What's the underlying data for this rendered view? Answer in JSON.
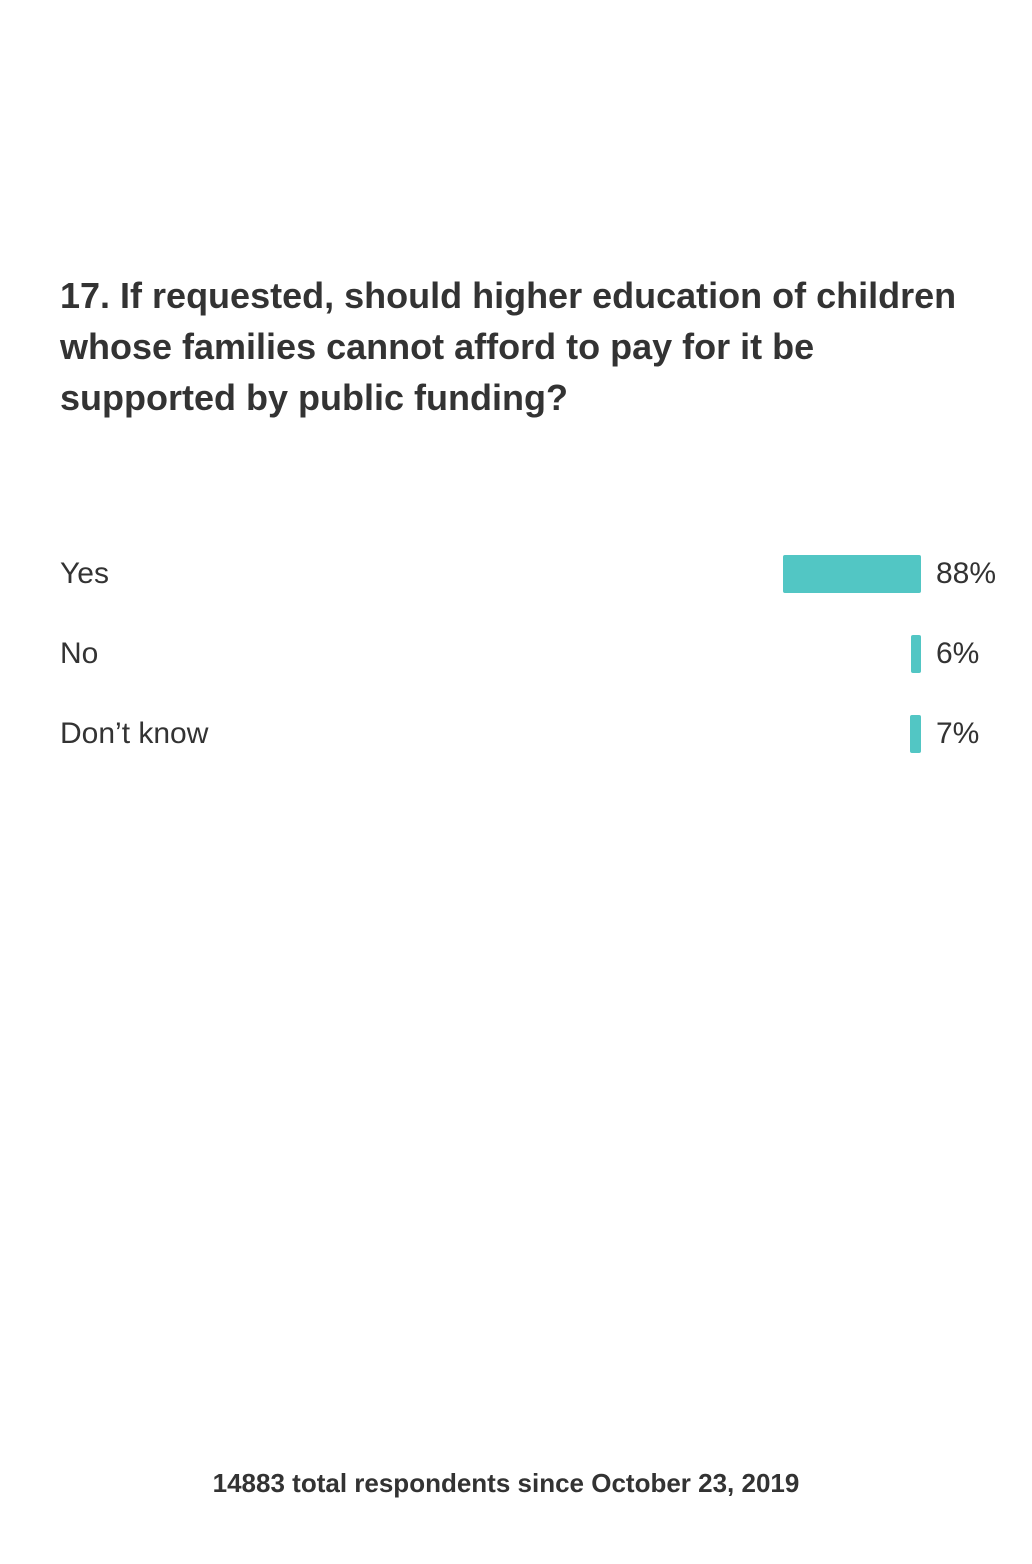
{
  "question": {
    "title": "17. If requested, should higher education of children whose families cannot afford to pay for it be supported by public funding?"
  },
  "chart_data": {
    "type": "bar",
    "orientation": "horizontal",
    "categories": [
      "Yes",
      "No",
      "Don’t know"
    ],
    "values": [
      88,
      6,
      7
    ],
    "value_labels": [
      "88%",
      "6%",
      "7%"
    ],
    "unit": "%",
    "xlim": [
      0,
      100
    ],
    "grid": false,
    "legend": "none",
    "bar_color": "#52c6c4"
  },
  "footer": {
    "text": "14883 total respondents since October 23, 2019"
  }
}
